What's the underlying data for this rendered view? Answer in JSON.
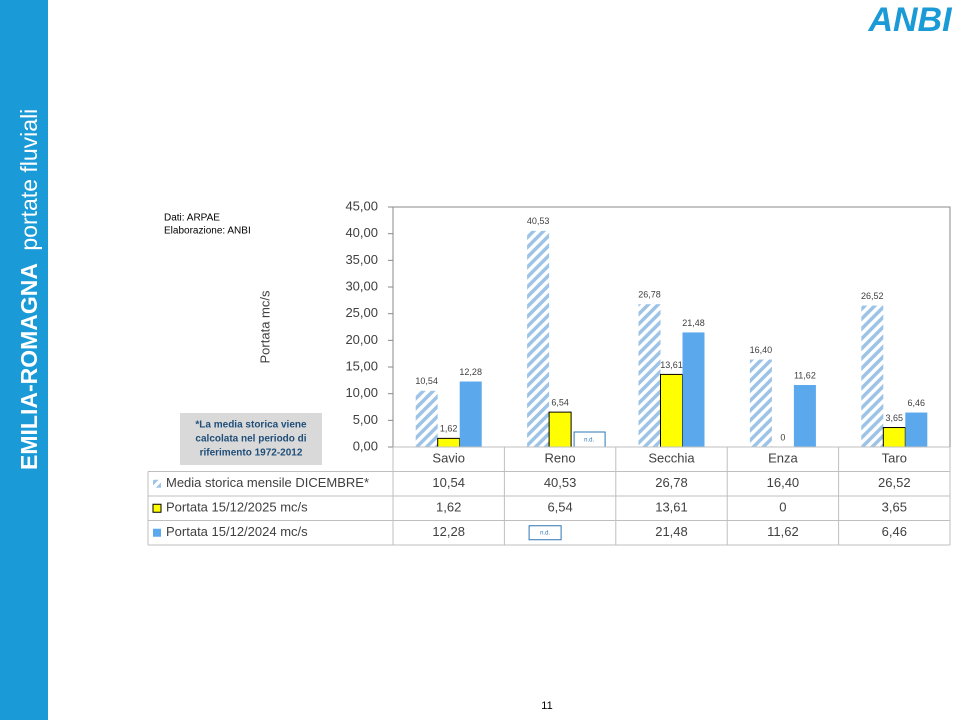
{
  "sidebar": {
    "title": "EMILIA-ROMAGNA",
    "subtitle": "portate fluviali"
  },
  "logo": "ANBI",
  "source": [
    "Dati: ARPAE",
    "Elaborazione: ANBI"
  ],
  "note": [
    "*La media storica viene",
    "calcolata nel periodo di",
    "riferimento 1972-2012"
  ],
  "page_number": "11",
  "chart_data": {
    "type": "bar",
    "y_label": "Portata mc/s",
    "categories": [
      "Savio",
      "Reno",
      "Secchia",
      "Enza",
      "Taro"
    ],
    "ylim": [
      0,
      45
    ],
    "yticks": [
      {
        "value": 0,
        "label": "0,00"
      },
      {
        "value": 5,
        "label": "5,00"
      },
      {
        "value": 10,
        "label": "10,00"
      },
      {
        "value": 15,
        "label": "15,00"
      },
      {
        "value": 20,
        "label": "20,00"
      },
      {
        "value": 25,
        "label": "25,00"
      },
      {
        "value": 30,
        "label": "30,00"
      },
      {
        "value": 35,
        "label": "35,00"
      },
      {
        "value": 40,
        "label": "40,00"
      },
      {
        "value": 45,
        "label": "45,00"
      }
    ],
    "grid": false,
    "series": [
      {
        "name": "Media storica mensile DICEMBRE*",
        "color": "#9dc3e6",
        "fill_style": "hatched",
        "values": [
          10.54,
          40.53,
          26.78,
          16.4,
          26.52
        ],
        "value_labels": [
          "10,54",
          "40,53",
          "26,78",
          "16,40",
          "26,52"
        ]
      },
      {
        "name": "Portata 15/12/2025 mc/s",
        "color": "#ffff00",
        "fill_style": "solid",
        "values": [
          1.62,
          6.54,
          13.61,
          0,
          3.65
        ],
        "value_labels": [
          "1,62",
          "6,54",
          "13,61",
          "0",
          "3,65"
        ]
      },
      {
        "name": "Portata 15/12/2024 mc/s",
        "color": "#5ba8ec",
        "fill_style": "solid",
        "values": [
          12.28,
          null,
          21.48,
          11.62,
          6.46
        ],
        "value_labels": [
          "12,28",
          "n.d.",
          "21,48",
          "11,62",
          "6,46"
        ]
      }
    ]
  }
}
